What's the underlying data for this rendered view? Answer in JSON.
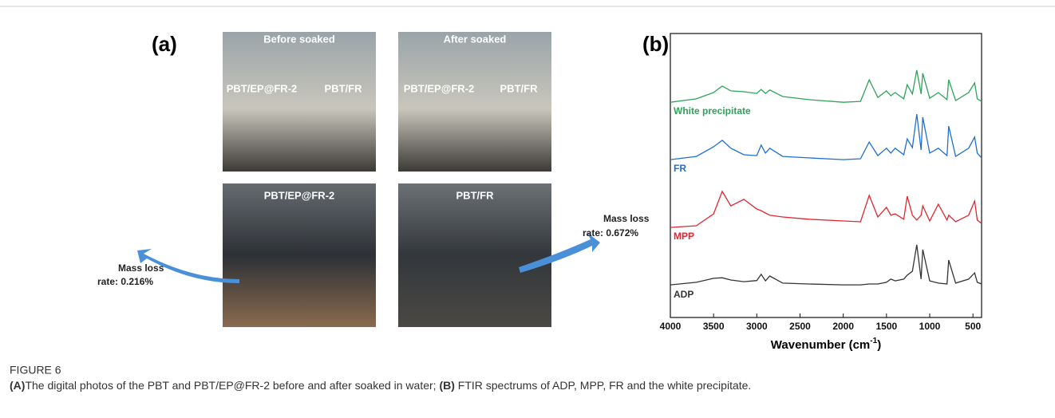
{
  "caption": {
    "figure_label": "FIGURE 6",
    "part_a_label": "(A)",
    "part_a_text": "The digital photos of the PBT and PBT/EP@FR-2 before and after soaked in water; ",
    "part_b_label": "(B)",
    "part_b_text": " FTIR spectrums of ADP, MPP, FR and the white precipitate."
  },
  "panel_a": {
    "label": "(a)",
    "photos": [
      {
        "title": "Before soaked",
        "labels": [
          "PBT/EP@FR-2",
          "PBT/FR"
        ]
      },
      {
        "title": "After soaked",
        "labels": [
          "PBT/EP@FR-2",
          "PBT/FR"
        ]
      },
      {
        "labels": [
          "PBT/EP@FR-2"
        ]
      },
      {
        "labels": [
          "PBT/FR"
        ]
      }
    ],
    "notes": [
      {
        "line1": "Mass loss",
        "line2": "rate: 0.216%"
      },
      {
        "line1": "Mass loss",
        "line2": "rate: 0.672%"
      }
    ]
  },
  "chart_data": {
    "type": "line",
    "panel_label": "(b)",
    "xlabel": "Wavenumber (cm",
    "xlabel_sup": "-1",
    "xlabel_end": ")",
    "xlim": [
      4000,
      400
    ],
    "xticks": [
      4000,
      3500,
      3000,
      2500,
      2000,
      1500,
      1000,
      500
    ],
    "ylim": [
      0,
      100
    ],
    "x": [
      4000,
      3700,
      3500,
      3400,
      3300,
      3150,
      3000,
      2950,
      2900,
      2850,
      2700,
      2400,
      2000,
      1800,
      1700,
      1600,
      1500,
      1450,
      1400,
      1300,
      1260,
      1200,
      1150,
      1100,
      1080,
      1000,
      900,
      800,
      780,
      700,
      550,
      480,
      450,
      400
    ],
    "series": [
      {
        "name": "White precipitate",
        "color": "#2ea35a",
        "values": [
          75.8,
          77.0,
          79.2,
          81.5,
          79.8,
          79.5,
          78.9,
          80.3,
          78.9,
          80.1,
          77.8,
          76.7,
          75.8,
          76.1,
          83.7,
          77.5,
          79.8,
          78.1,
          79.2,
          77.0,
          82.0,
          78.7,
          87.1,
          78.7,
          86.0,
          77.2,
          79.2,
          76.7,
          83.7,
          76.4,
          79.2,
          82.6,
          77.0,
          76.1
        ]
      },
      {
        "name": "FR",
        "color": "#1f6fd1",
        "values": [
          55.6,
          56.7,
          60.1,
          62.4,
          59.6,
          57.3,
          57.0,
          60.7,
          57.9,
          59.6,
          56.7,
          56.2,
          55.6,
          55.9,
          61.8,
          57.0,
          59.6,
          57.9,
          59.6,
          57.3,
          62.9,
          59.8,
          71.6,
          59.0,
          70.5,
          57.9,
          59.6,
          57.0,
          67.4,
          56.7,
          59.6,
          63.5,
          57.9,
          56.2
        ]
      },
      {
        "name": "MPP",
        "color": "#e0262f",
        "values": [
          31.7,
          32.3,
          36.5,
          44.4,
          39.3,
          41.6,
          38.2,
          37.6,
          36.8,
          36.0,
          35.4,
          34.6,
          34.0,
          33.7,
          43.0,
          35.4,
          38.8,
          36.0,
          36.5,
          34.6,
          42.7,
          36.0,
          34.3,
          36.0,
          39.3,
          34.0,
          39.9,
          34.3,
          36.0,
          33.7,
          36.0,
          41.0,
          34.3,
          33.1
        ]
      },
      {
        "name": "ADP",
        "color": "#333333",
        "values": [
          11.5,
          12.4,
          13.8,
          14.0,
          13.2,
          12.6,
          13.0,
          15.2,
          12.9,
          14.6,
          12.1,
          11.8,
          11.5,
          11.5,
          11.8,
          11.8,
          12.4,
          13.5,
          12.9,
          13.5,
          14.9,
          16.3,
          25.6,
          13.5,
          23.9,
          12.9,
          12.1,
          11.8,
          20.2,
          12.1,
          13.5,
          15.7,
          12.4,
          11.8
        ]
      }
    ]
  }
}
